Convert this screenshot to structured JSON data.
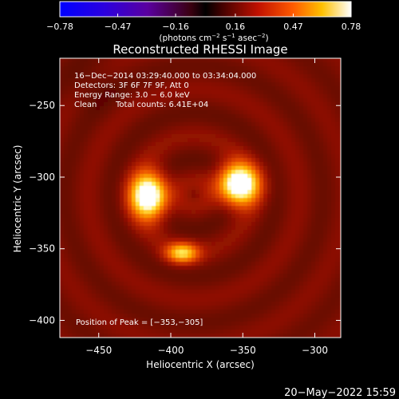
{
  "chart_data": {
    "type": "heatmap",
    "title": "Reconstructed RHESSI Image",
    "xlabel": "Heliocentric X (arcsec)",
    "ylabel": "Heliocentric Y (arcsec)",
    "xlim": [
      -477,
      -282
    ],
    "ylim": [
      -412,
      -217
    ],
    "x_ticks": [
      -450,
      -400,
      -350,
      -300
    ],
    "y_ticks": [
      -250,
      -300,
      -350,
      -400
    ],
    "x_tick_labels": [
      "−450",
      "−400",
      "−350",
      "−300"
    ],
    "y_tick_labels": [
      "−250",
      "−300",
      "−350",
      "−400"
    ],
    "colorbar": {
      "min": -0.78,
      "max": 0.78,
      "ticks": [
        -0.78,
        -0.47,
        -0.16,
        0.16,
        0.47,
        0.78
      ],
      "tick_labels": [
        "−0.78",
        "−0.47",
        "−0.16",
        "0.16",
        "0.47",
        "0.78"
      ],
      "unit_prefix": "(photons cm",
      "unit_exp1": "−2",
      "unit_mid": " s",
      "unit_exp2": "−1",
      "unit_mid2": " asec",
      "unit_exp3": "−2",
      "unit_suffix": ")"
    },
    "annotations": {
      "time_range": "16−Dec−2014 03:29:40.000 to 03:34:04.000",
      "detectors": "Detectors: 3F 6F 7F 9F, Att 0",
      "energy": "Energy Range: 3.0 − 6.0 keV",
      "method": "Clean",
      "counts": "Total counts: 6.41E+04",
      "peak": "Position of Peak = [−353,−305]"
    },
    "sources": [
      {
        "x": -415,
        "y": -313,
        "peak": 0.78,
        "sx": 9,
        "sy": 11
      },
      {
        "x": -353,
        "y": -305,
        "peak": 0.78,
        "sx": 10,
        "sy": 10
      },
      {
        "x": -392,
        "y": -353,
        "peak": 0.48,
        "sx": 8,
        "sy": 5
      }
    ],
    "background_level": 0.18
  },
  "footer": {
    "date": "20−May−2022 15:59"
  }
}
